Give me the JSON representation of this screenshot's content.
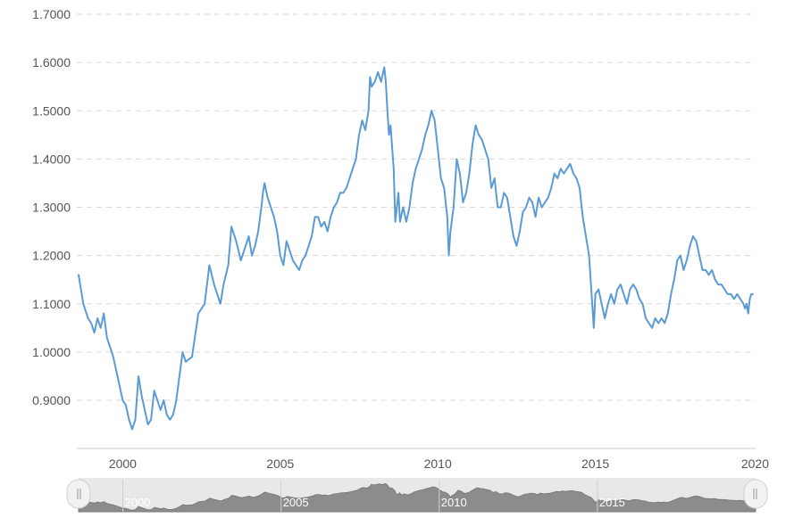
{
  "chart_data": {
    "type": "line",
    "title": "",
    "xlabel": "",
    "ylabel": "",
    "ylim": [
      0.8,
      1.7
    ],
    "xlim": [
      1998.6,
      2020.0
    ],
    "y_ticks": [
      "0.9000",
      "1.0000",
      "1.1000",
      "1.2000",
      "1.3000",
      "1.4000",
      "1.5000",
      "1.6000",
      "1.7000"
    ],
    "x_ticks": [
      "2000",
      "2005",
      "2010",
      "2015",
      "2020"
    ],
    "grid": "horizontal dashed",
    "legend": "none",
    "colors": {
      "line": "#5b9bd5",
      "grid": "#d9d9d9",
      "axis_text": "#555555",
      "navigator_fill": "#8c8c8c",
      "navigator_handle": "#f2f2f2"
    },
    "series": [
      {
        "values": [
          [
            1998.6,
            1.16
          ],
          [
            1998.75,
            1.1
          ],
          [
            1998.9,
            1.07
          ],
          [
            1999.0,
            1.06
          ],
          [
            1999.1,
            1.04
          ],
          [
            1999.2,
            1.07
          ],
          [
            1999.3,
            1.05
          ],
          [
            1999.4,
            1.08
          ],
          [
            1999.5,
            1.03
          ],
          [
            1999.6,
            1.01
          ],
          [
            1999.7,
            0.99
          ],
          [
            1999.8,
            0.96
          ],
          [
            1999.9,
            0.93
          ],
          [
            2000.0,
            0.9
          ],
          [
            2000.1,
            0.89
          ],
          [
            2000.2,
            0.86
          ],
          [
            2000.3,
            0.84
          ],
          [
            2000.4,
            0.86
          ],
          [
            2000.5,
            0.95
          ],
          [
            2000.6,
            0.91
          ],
          [
            2000.7,
            0.88
          ],
          [
            2000.8,
            0.85
          ],
          [
            2000.9,
            0.86
          ],
          [
            2001.0,
            0.92
          ],
          [
            2001.1,
            0.9
          ],
          [
            2001.2,
            0.88
          ],
          [
            2001.3,
            0.9
          ],
          [
            2001.4,
            0.87
          ],
          [
            2001.5,
            0.86
          ],
          [
            2001.6,
            0.87
          ],
          [
            2001.7,
            0.9
          ],
          [
            2001.8,
            0.95
          ],
          [
            2001.9,
            1.0
          ],
          [
            2002.0,
            0.98
          ],
          [
            2002.2,
            0.99
          ],
          [
            2002.4,
            1.08
          ],
          [
            2002.6,
            1.1
          ],
          [
            2002.75,
            1.18
          ],
          [
            2002.9,
            1.14
          ],
          [
            2003.0,
            1.12
          ],
          [
            2003.1,
            1.1
          ],
          [
            2003.2,
            1.14
          ],
          [
            2003.35,
            1.18
          ],
          [
            2003.45,
            1.26
          ],
          [
            2003.6,
            1.23
          ],
          [
            2003.75,
            1.19
          ],
          [
            2003.9,
            1.22
          ],
          [
            2004.0,
            1.24
          ],
          [
            2004.1,
            1.2
          ],
          [
            2004.2,
            1.22
          ],
          [
            2004.3,
            1.25
          ],
          [
            2004.4,
            1.3
          ],
          [
            2004.45,
            1.33
          ],
          [
            2004.5,
            1.35
          ],
          [
            2004.6,
            1.32
          ],
          [
            2004.7,
            1.3
          ],
          [
            2004.8,
            1.28
          ],
          [
            2004.9,
            1.25
          ],
          [
            2005.0,
            1.2
          ],
          [
            2005.1,
            1.18
          ],
          [
            2005.2,
            1.23
          ],
          [
            2005.3,
            1.21
          ],
          [
            2005.4,
            1.19
          ],
          [
            2005.5,
            1.18
          ],
          [
            2005.6,
            1.17
          ],
          [
            2005.7,
            1.19
          ],
          [
            2005.8,
            1.2
          ],
          [
            2005.9,
            1.22
          ],
          [
            2006.0,
            1.24
          ],
          [
            2006.1,
            1.28
          ],
          [
            2006.2,
            1.28
          ],
          [
            2006.3,
            1.26
          ],
          [
            2006.4,
            1.27
          ],
          [
            2006.5,
            1.25
          ],
          [
            2006.6,
            1.28
          ],
          [
            2006.7,
            1.3
          ],
          [
            2006.8,
            1.31
          ],
          [
            2006.9,
            1.33
          ],
          [
            2007.0,
            1.33
          ],
          [
            2007.1,
            1.34
          ],
          [
            2007.2,
            1.36
          ],
          [
            2007.3,
            1.38
          ],
          [
            2007.4,
            1.4
          ],
          [
            2007.5,
            1.45
          ],
          [
            2007.6,
            1.48
          ],
          [
            2007.7,
            1.46
          ],
          [
            2007.8,
            1.5
          ],
          [
            2007.85,
            1.57
          ],
          [
            2007.9,
            1.55
          ],
          [
            2008.0,
            1.56
          ],
          [
            2008.1,
            1.58
          ],
          [
            2008.2,
            1.56
          ],
          [
            2008.3,
            1.59
          ],
          [
            2008.35,
            1.56
          ],
          [
            2008.4,
            1.5
          ],
          [
            2008.45,
            1.45
          ],
          [
            2008.5,
            1.47
          ],
          [
            2008.6,
            1.38
          ],
          [
            2008.65,
            1.27
          ],
          [
            2008.7,
            1.3
          ],
          [
            2008.75,
            1.33
          ],
          [
            2008.8,
            1.27
          ],
          [
            2008.9,
            1.3
          ],
          [
            2009.0,
            1.27
          ],
          [
            2009.1,
            1.3
          ],
          [
            2009.2,
            1.35
          ],
          [
            2009.3,
            1.38
          ],
          [
            2009.4,
            1.4
          ],
          [
            2009.5,
            1.42
          ],
          [
            2009.6,
            1.45
          ],
          [
            2009.7,
            1.47
          ],
          [
            2009.8,
            1.5
          ],
          [
            2009.9,
            1.48
          ],
          [
            2010.0,
            1.42
          ],
          [
            2010.1,
            1.36
          ],
          [
            2010.2,
            1.34
          ],
          [
            2010.3,
            1.28
          ],
          [
            2010.35,
            1.2
          ],
          [
            2010.4,
            1.25
          ],
          [
            2010.5,
            1.3
          ],
          [
            2010.6,
            1.4
          ],
          [
            2010.7,
            1.37
          ],
          [
            2010.8,
            1.31
          ],
          [
            2010.9,
            1.33
          ],
          [
            2011.0,
            1.37
          ],
          [
            2011.1,
            1.43
          ],
          [
            2011.2,
            1.47
          ],
          [
            2011.3,
            1.45
          ],
          [
            2011.4,
            1.44
          ],
          [
            2011.5,
            1.42
          ],
          [
            2011.6,
            1.4
          ],
          [
            2011.7,
            1.34
          ],
          [
            2011.8,
            1.36
          ],
          [
            2011.9,
            1.3
          ],
          [
            2012.0,
            1.3
          ],
          [
            2012.1,
            1.33
          ],
          [
            2012.2,
            1.32
          ],
          [
            2012.3,
            1.28
          ],
          [
            2012.4,
            1.24
          ],
          [
            2012.5,
            1.22
          ],
          [
            2012.6,
            1.25
          ],
          [
            2012.7,
            1.29
          ],
          [
            2012.8,
            1.3
          ],
          [
            2012.9,
            1.32
          ],
          [
            2013.0,
            1.31
          ],
          [
            2013.1,
            1.28
          ],
          [
            2013.2,
            1.32
          ],
          [
            2013.3,
            1.3
          ],
          [
            2013.4,
            1.31
          ],
          [
            2013.5,
            1.32
          ],
          [
            2013.6,
            1.34
          ],
          [
            2013.7,
            1.37
          ],
          [
            2013.8,
            1.36
          ],
          [
            2013.9,
            1.38
          ],
          [
            2014.0,
            1.37
          ],
          [
            2014.1,
            1.38
          ],
          [
            2014.2,
            1.39
          ],
          [
            2014.3,
            1.37
          ],
          [
            2014.4,
            1.36
          ],
          [
            2014.5,
            1.34
          ],
          [
            2014.6,
            1.28
          ],
          [
            2014.7,
            1.24
          ],
          [
            2014.8,
            1.2
          ],
          [
            2014.85,
            1.15
          ],
          [
            2014.9,
            1.1
          ],
          [
            2014.95,
            1.05
          ],
          [
            2015.0,
            1.12
          ],
          [
            2015.1,
            1.13
          ],
          [
            2015.2,
            1.1
          ],
          [
            2015.3,
            1.07
          ],
          [
            2015.4,
            1.1
          ],
          [
            2015.5,
            1.12
          ],
          [
            2015.6,
            1.1
          ],
          [
            2015.7,
            1.13
          ],
          [
            2015.8,
            1.14
          ],
          [
            2015.9,
            1.12
          ],
          [
            2016.0,
            1.1
          ],
          [
            2016.1,
            1.13
          ],
          [
            2016.2,
            1.14
          ],
          [
            2016.3,
            1.13
          ],
          [
            2016.4,
            1.11
          ],
          [
            2016.5,
            1.1
          ],
          [
            2016.6,
            1.07
          ],
          [
            2016.7,
            1.06
          ],
          [
            2016.8,
            1.05
          ],
          [
            2016.9,
            1.07
          ],
          [
            2017.0,
            1.06
          ],
          [
            2017.1,
            1.07
          ],
          [
            2017.2,
            1.06
          ],
          [
            2017.3,
            1.08
          ],
          [
            2017.4,
            1.12
          ],
          [
            2017.5,
            1.15
          ],
          [
            2017.6,
            1.19
          ],
          [
            2017.7,
            1.2
          ],
          [
            2017.8,
            1.17
          ],
          [
            2017.9,
            1.19
          ],
          [
            2018.0,
            1.22
          ],
          [
            2018.1,
            1.24
          ],
          [
            2018.2,
            1.23
          ],
          [
            2018.3,
            1.2
          ],
          [
            2018.4,
            1.17
          ],
          [
            2018.5,
            1.17
          ],
          [
            2018.6,
            1.16
          ],
          [
            2018.7,
            1.17
          ],
          [
            2018.8,
            1.15
          ],
          [
            2018.9,
            1.14
          ],
          [
            2019.0,
            1.14
          ],
          [
            2019.1,
            1.13
          ],
          [
            2019.2,
            1.12
          ],
          [
            2019.3,
            1.12
          ],
          [
            2019.4,
            1.11
          ],
          [
            2019.5,
            1.12
          ],
          [
            2019.6,
            1.11
          ],
          [
            2019.7,
            1.1
          ],
          [
            2019.75,
            1.09
          ],
          [
            2019.8,
            1.1
          ],
          [
            2019.85,
            1.08
          ],
          [
            2019.9,
            1.11
          ],
          [
            2019.95,
            1.12
          ],
          [
            2020.0,
            1.12
          ]
        ]
      }
    ]
  },
  "navigator": {
    "labels": [
      "2000",
      "2005",
      "2010",
      "2015"
    ]
  }
}
